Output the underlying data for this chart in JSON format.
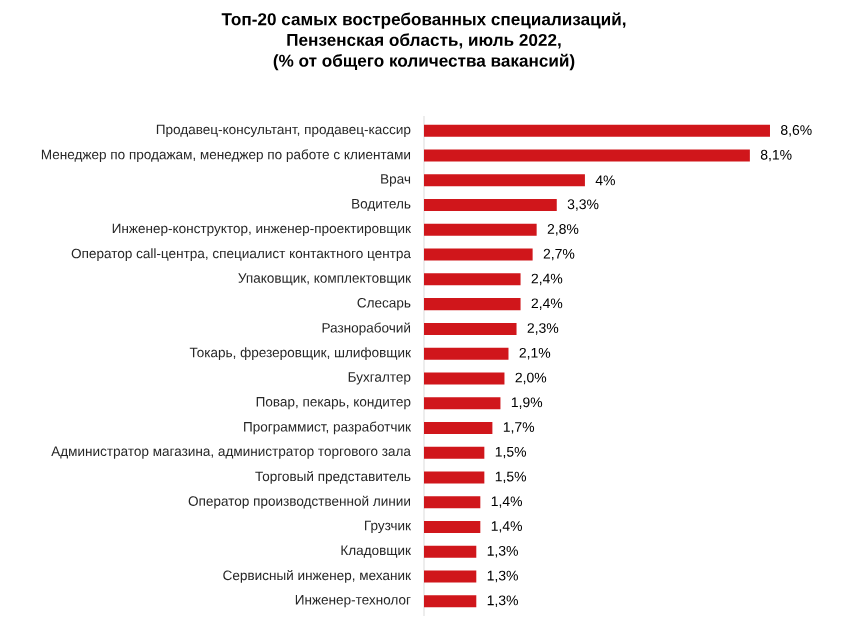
{
  "chart_data": {
    "type": "bar",
    "orientation": "horizontal",
    "title": "Топ-20 самых востребованных специализаций,\nПензенская область, июль 2022,\n(% от общего количества вакансий)",
    "categories": [
      "Продавец-консультант, продавец-кассир",
      "Менеджер по продажам, менеджер по работе с клиентами",
      "Врач",
      "Водитель",
      "Инженер-конструктор, инженер-проектировщик",
      "Оператор call-центра, специалист контактного центра",
      "Упаковщик, комплектовщик",
      "Слесарь",
      "Разнорабочий",
      "Токарь, фрезеровщик, шлифовщик",
      "Бухгалтер",
      "Повар, пекарь, кондитер",
      "Программист, разработчик",
      "Администратор магазина, администратор торгового зала",
      "Торговый представитель",
      "Оператор производственной линии",
      "Грузчик",
      "Кладовщик",
      "Сервисный инженер, механик",
      "Инженер-технолог"
    ],
    "values": [
      8.6,
      8.1,
      4,
      3.3,
      2.8,
      2.7,
      2.4,
      2.4,
      2.3,
      2.1,
      2.0,
      1.9,
      1.7,
      1.5,
      1.5,
      1.4,
      1.4,
      1.3,
      1.3,
      1.3
    ],
    "value_labels": [
      "8,6%",
      "8,1%",
      "4%",
      "3,3%",
      "2,8%",
      "2,7%",
      "2,4%",
      "2,4%",
      "2,3%",
      "2,1%",
      "2,0%",
      "1,9%",
      "1,7%",
      "1,5%",
      "1,5%",
      "1,4%",
      "1,4%",
      "1,3%",
      "1,3%",
      "1,3%"
    ],
    "color": "#d0161b"
  }
}
